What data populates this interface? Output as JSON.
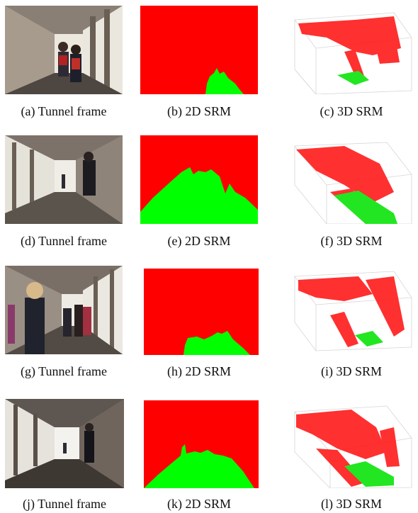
{
  "figure": {
    "rows": [
      {
        "captions": [
          "(a) Tunnel frame",
          "(b) 2D SRM",
          "(c) 3D SRM"
        ]
      },
      {
        "captions": [
          "(d) Tunnel frame",
          "(e) 2D SRM",
          "(f) 3D SRM"
        ]
      },
      {
        "captions": [
          "(g) Tunnel frame",
          "(h) 2D SRM",
          "(i) 3D SRM"
        ]
      },
      {
        "captions": [
          "(j) Tunnel frame",
          "(k) 2D SRM",
          "(l) 3D SRM"
        ]
      }
    ]
  },
  "colors": {
    "occupied": "#ff0000",
    "walkable": "#00ff00",
    "tunnel_wall": "#6b6158",
    "tunnel_floor": "#5a524c",
    "window_light": "#f4f2ee"
  }
}
